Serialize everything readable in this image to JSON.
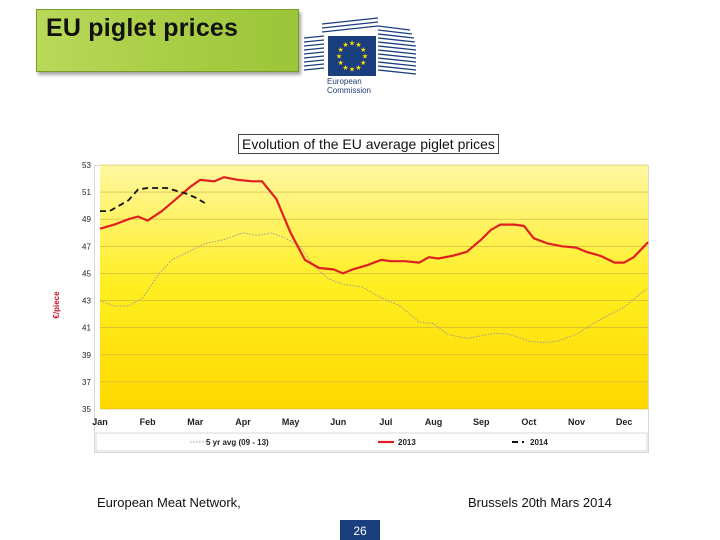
{
  "slide": {
    "title": "EU piglet prices",
    "footer_left": "European Meat Network,",
    "footer_right": "Brussels 20th Mars 2014",
    "page_number": "26"
  },
  "logo": {
    "line1": "European",
    "line2": "Commission",
    "colors": {
      "flag_blue": "#1b3e7f",
      "star_yellow": "#ffdd00"
    }
  },
  "chart_data": {
    "type": "line",
    "title": "Evolution of the EU average piglet prices",
    "xlabel": "",
    "ylabel": "€/piece",
    "ylim": [
      35,
      53
    ],
    "yticks": [
      35,
      37,
      39,
      41,
      43,
      45,
      47,
      49,
      51,
      53
    ],
    "categories": [
      "Jan",
      "Feb",
      "Mar",
      "Apr",
      "May",
      "Jun",
      "Jul",
      "Aug",
      "Sep",
      "Oct",
      "Nov",
      "Dec"
    ],
    "grid": true,
    "legend_position": "bottom",
    "series": [
      {
        "name": "5 yr avg (09 - 13)",
        "style": "dotted",
        "color": "#9a9a9a",
        "x": [
          0,
          0.3,
          0.6,
          0.9,
          1.2,
          1.5,
          1.8,
          2.2,
          2.6,
          3.0,
          3.3,
          3.6,
          3.9,
          4.2,
          4.5,
          4.8,
          5.1,
          5.5,
          5.9,
          6.3,
          6.7,
          7.0,
          7.3,
          7.7,
          8.0,
          8.3,
          8.6,
          9.0,
          9.3,
          9.6,
          10.0,
          10.3,
          10.6,
          11.0,
          11.3,
          11.5
        ],
        "values": [
          43.0,
          42.6,
          42.6,
          43.2,
          44.8,
          46.0,
          46.5,
          47.2,
          47.5,
          48.0,
          47.8,
          48.0,
          47.6,
          47.0,
          45.5,
          44.6,
          44.2,
          44.0,
          43.2,
          42.6,
          41.4,
          41.3,
          40.5,
          40.2,
          40.4,
          40.6,
          40.5,
          40.0,
          39.9,
          40.0,
          40.5,
          41.2,
          41.8,
          42.5,
          43.4,
          43.9
        ]
      },
      {
        "name": "2013",
        "style": "solid",
        "color": "#e02020",
        "x": [
          0,
          0.3,
          0.6,
          0.8,
          1.0,
          1.3,
          1.6,
          1.9,
          2.1,
          2.4,
          2.6,
          2.9,
          3.2,
          3.4,
          3.7,
          4.0,
          4.3,
          4.6,
          4.9,
          5.1,
          5.3,
          5.6,
          5.9,
          6.1,
          6.4,
          6.7,
          6.9,
          7.1,
          7.4,
          7.7,
          8.0,
          8.2,
          8.4,
          8.7,
          8.9,
          9.1,
          9.4,
          9.7,
          10.0,
          10.2,
          10.5,
          10.8,
          11.0,
          11.2,
          11.5
        ],
        "values": [
          48.3,
          48.6,
          49.0,
          49.2,
          48.9,
          49.6,
          50.5,
          51.4,
          51.9,
          51.8,
          52.1,
          51.9,
          51.8,
          51.8,
          50.5,
          48.0,
          46.0,
          45.4,
          45.3,
          45.0,
          45.3,
          45.6,
          46.0,
          45.9,
          45.9,
          45.8,
          46.2,
          46.1,
          46.3,
          46.6,
          47.5,
          48.2,
          48.6,
          48.6,
          48.5,
          47.6,
          47.2,
          47.0,
          46.9,
          46.6,
          46.3,
          45.8,
          45.8,
          46.2,
          47.3
        ]
      },
      {
        "name": "2014",
        "style": "dashed",
        "color": "#111111",
        "x": [
          0,
          0.2,
          0.4,
          0.6,
          0.8,
          1.0,
          1.2,
          1.4,
          1.6,
          1.8,
          2.0,
          2.2
        ],
        "values": [
          49.6,
          49.6,
          50.0,
          50.4,
          51.2,
          51.3,
          51.3,
          51.3,
          51.1,
          50.9,
          50.6,
          50.2
        ]
      }
    ]
  }
}
